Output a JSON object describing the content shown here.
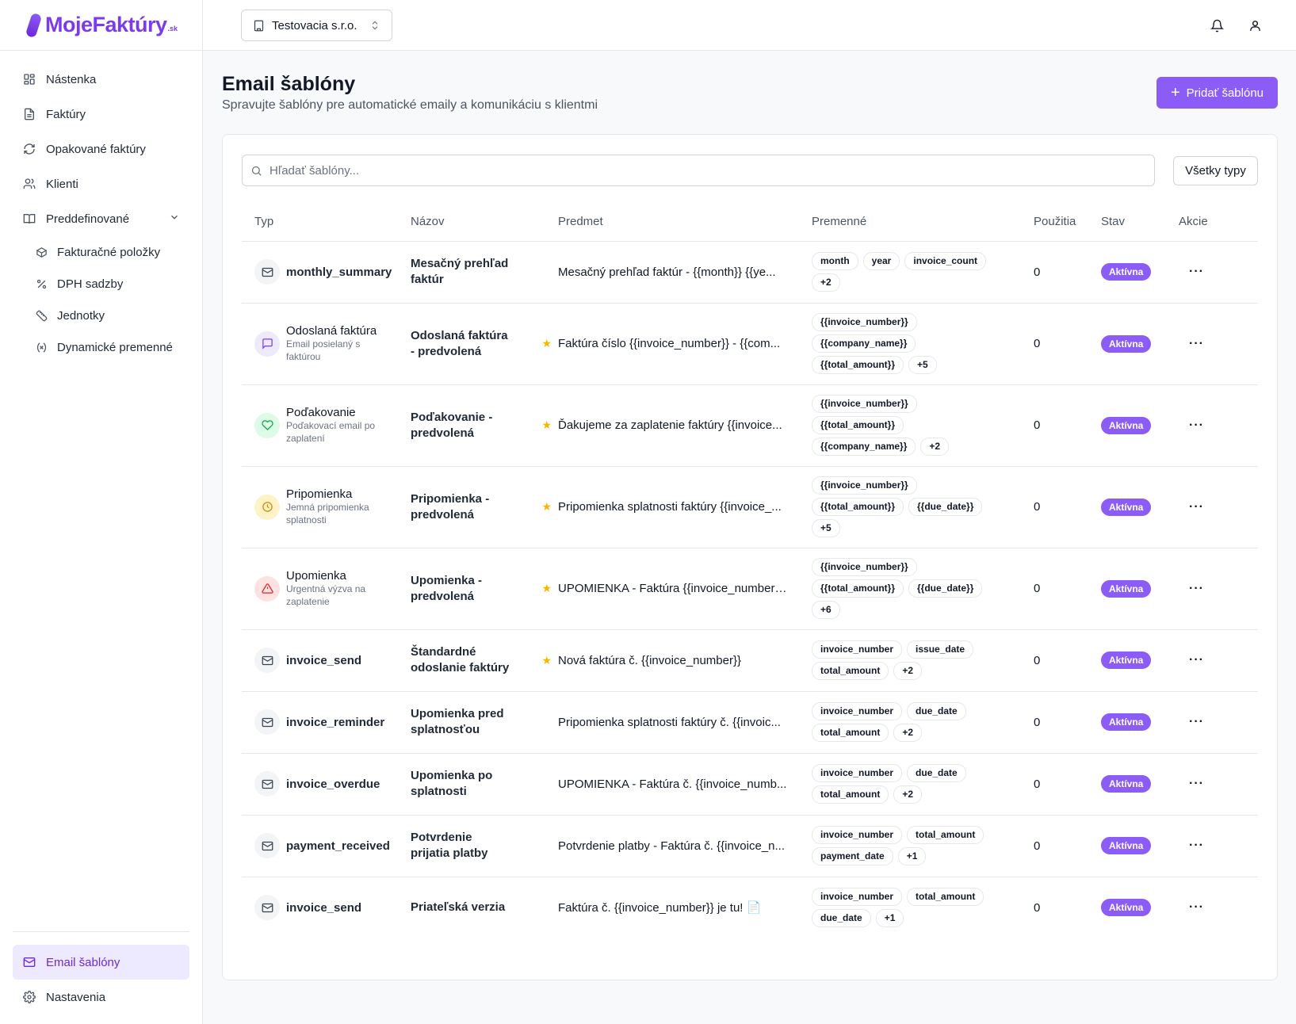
{
  "brand": {
    "name_main": "MojeFaktúry",
    "name_suffix": ".sk",
    "accent": "#8b5cf6"
  },
  "sidebar": {
    "items": [
      {
        "label": "Nástenka",
        "icon": "dashboard-icon"
      },
      {
        "label": "Faktúry",
        "icon": "file-icon"
      },
      {
        "label": "Opakované faktúry",
        "icon": "refresh-icon"
      },
      {
        "label": "Klienti",
        "icon": "users-icon"
      },
      {
        "label": "Preddefinované",
        "icon": "book-icon"
      }
    ],
    "sub_items": [
      {
        "label": "Fakturačné položky",
        "icon": "box-icon"
      },
      {
        "label": "DPH sadzby",
        "icon": "percent-icon"
      },
      {
        "label": "Jednotky",
        "icon": "ruler-icon"
      },
      {
        "label": "Dynamické premenné",
        "icon": "variable-icon"
      }
    ],
    "bottom": [
      {
        "label": "Email šablóny",
        "icon": "mail-icon",
        "active": true
      },
      {
        "label": "Nastavenia",
        "icon": "gear-icon"
      }
    ]
  },
  "topbar": {
    "company": "Testovacia s.r.o."
  },
  "page": {
    "title": "Email šablóny",
    "subtitle": "Spravujte šablóny pre automatické emaily a komunikáciu s klientmi",
    "add_button": "Pridať šablónu"
  },
  "filters": {
    "search_placeholder": "Hľadať šablóny...",
    "type_filter": "Všetky typy"
  },
  "table": {
    "headers": [
      "Typ",
      "Názov",
      "Predmet",
      "Premenné",
      "Použitia",
      "Stav",
      "Akcie"
    ],
    "rows": [
      {
        "type_name": "monthly_summary",
        "type_desc": "",
        "icon": "mail-icon",
        "tone": "gray",
        "code": true,
        "name": "Mesačný prehľad faktúr",
        "starred": false,
        "subject": "Mesačný prehľad faktúr - {{month}} {{ye...",
        "vars": [
          "month",
          "year",
          "invoice_count",
          "+2"
        ],
        "uses": "0",
        "status": "Aktívna"
      },
      {
        "type_name": "Odoslaná faktúra",
        "type_desc": "Email posielaný s faktúrou",
        "icon": "message-icon",
        "tone": "purple",
        "code": false,
        "name": "Odoslaná faktúra - predvolená",
        "starred": true,
        "subject": "Faktúra číslo {{invoice_number}} - {{com...",
        "vars": [
          "{{invoice_number}}",
          "{{company_name}}",
          "{{total_amount}}",
          "+5"
        ],
        "uses": "0",
        "status": "Aktívna"
      },
      {
        "type_name": "Poďakovanie",
        "type_desc": "Poďakovací email po zaplatení",
        "icon": "heart-icon",
        "tone": "green",
        "code": false,
        "name": "Poďakovanie - predvolená",
        "starred": true,
        "subject": "Ďakujeme za zaplatenie faktúry {{invoice...",
        "vars": [
          "{{invoice_number}}",
          "{{total_amount}}",
          "{{company_name}}",
          "+2"
        ],
        "uses": "0",
        "status": "Aktívna"
      },
      {
        "type_name": "Pripomienka",
        "type_desc": "Jemná pripomienka splatnosti",
        "icon": "clock-icon",
        "tone": "yellow",
        "code": false,
        "name": "Pripomienka - predvolená",
        "starred": true,
        "subject": "Pripomienka splatnosti faktúry {{invoice_...",
        "vars": [
          "{{invoice_number}}",
          "{{total_amount}}",
          "{{due_date}}",
          "+5"
        ],
        "uses": "0",
        "status": "Aktívna"
      },
      {
        "type_name": "Upomienka",
        "type_desc": "Urgentná výzva na zaplatenie",
        "icon": "warning-icon",
        "tone": "red",
        "code": false,
        "name": "Upomienka - predvolená",
        "starred": true,
        "subject": "UPOMIENKA - Faktúra {{invoice_number}}...",
        "vars": [
          "{{invoice_number}}",
          "{{total_amount}}",
          "{{due_date}}",
          "+6"
        ],
        "uses": "0",
        "status": "Aktívna"
      },
      {
        "type_name": "invoice_send",
        "type_desc": "",
        "icon": "mail-icon",
        "tone": "gray",
        "code": true,
        "name": "Štandardné odoslanie faktúry",
        "starred": true,
        "subject": "Nová faktúra č. {{invoice_number}}",
        "vars": [
          "invoice_number",
          "issue_date",
          "total_amount",
          "+2"
        ],
        "uses": "0",
        "status": "Aktívna"
      },
      {
        "type_name": "invoice_reminder",
        "type_desc": "",
        "icon": "mail-icon",
        "tone": "gray",
        "code": true,
        "name": "Upomienka pred splatnosťou",
        "starred": false,
        "subject": "Pripomienka splatnosti faktúry č. {{invoic...",
        "vars": [
          "invoice_number",
          "due_date",
          "total_amount",
          "+2"
        ],
        "uses": "0",
        "status": "Aktívna"
      },
      {
        "type_name": "invoice_overdue",
        "type_desc": "",
        "icon": "mail-icon",
        "tone": "gray",
        "code": true,
        "name": "Upomienka po splatnosti",
        "starred": false,
        "subject": "UPOMIENKA - Faktúra č. {{invoice_numb...",
        "vars": [
          "invoice_number",
          "due_date",
          "total_amount",
          "+2"
        ],
        "uses": "0",
        "status": "Aktívna"
      },
      {
        "type_name": "payment_received",
        "type_desc": "",
        "icon": "mail-icon",
        "tone": "gray",
        "code": true,
        "name": "Potvrdenie prijatia platby",
        "starred": false,
        "subject": "Potvrdenie platby - Faktúra č. {{invoice_n...",
        "vars": [
          "invoice_number",
          "total_amount",
          "payment_date",
          "+1"
        ],
        "uses": "0",
        "status": "Aktívna"
      },
      {
        "type_name": "invoice_send",
        "type_desc": "",
        "icon": "mail-icon",
        "tone": "gray",
        "code": true,
        "name": "Priateľská verzia",
        "starred": false,
        "subject": "Faktúra č. {{invoice_number}} je tu! 📄",
        "vars": [
          "invoice_number",
          "total_amount",
          "due_date",
          "+1"
        ],
        "uses": "0",
        "status": "Aktívna"
      }
    ]
  }
}
